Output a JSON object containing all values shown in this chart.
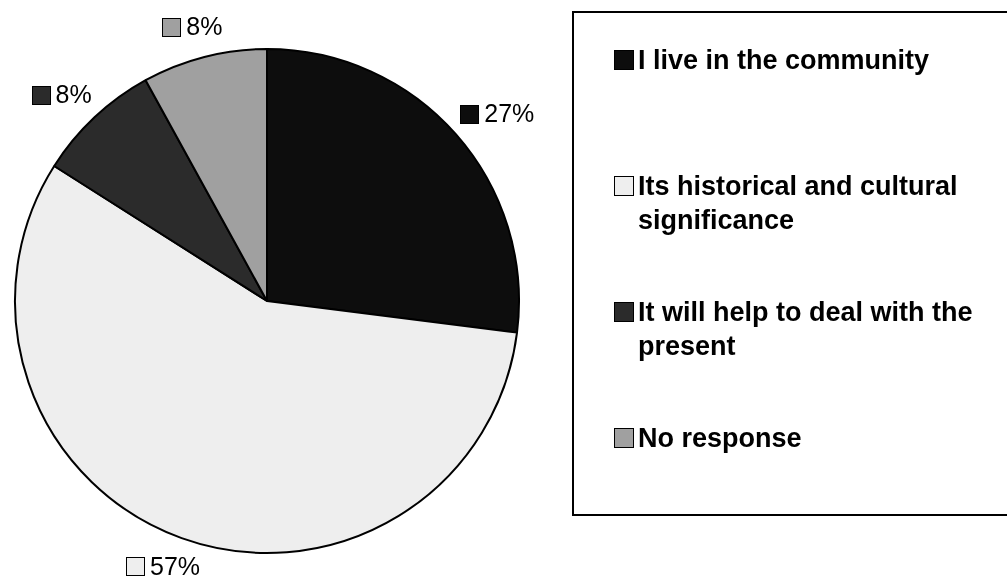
{
  "chart_data": {
    "type": "pie",
    "categories": [
      "I live in the community",
      "Its historical and cultural significance",
      "It will help to deal with the present",
      "No response"
    ],
    "values": [
      27,
      57,
      8,
      8
    ],
    "colors": [
      "#0d0d0d",
      "#eeeeee",
      "#2b2b2b",
      "#a0a0a0"
    ],
    "value_labels": [
      "27%",
      "57%",
      "8%",
      "8%"
    ],
    "legend": "right"
  }
}
